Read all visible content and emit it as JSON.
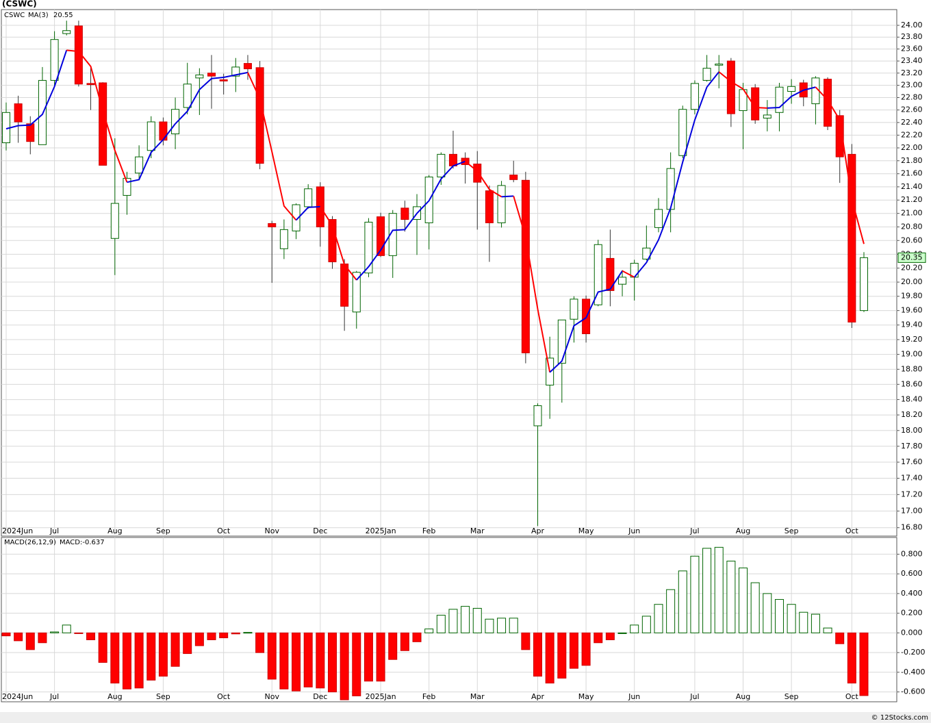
{
  "header": "(CSWC)",
  "footer": "© 12Stocks.com",
  "chart_data": [
    {
      "type": "candlestick",
      "symbol": "CSWC",
      "log_scale": true,
      "grid": true,
      "up_color": "#006400",
      "down_color": "#ff0000",
      "categories": [
        "2024Jun",
        null,
        null,
        null,
        "Jul",
        null,
        null,
        null,
        null,
        "Aug",
        null,
        null,
        null,
        "Sep",
        null,
        null,
        null,
        null,
        "Oct",
        null,
        null,
        null,
        "Nov",
        null,
        null,
        null,
        "Dec",
        null,
        null,
        null,
        null,
        "2025Jan",
        null,
        null,
        null,
        "Feb",
        null,
        null,
        null,
        "Mar",
        null,
        null,
        null,
        null,
        "Apr",
        null,
        null,
        null,
        "May",
        null,
        null,
        null,
        "Jun",
        null,
        null,
        null,
        null,
        "Jul",
        null,
        null,
        null,
        "Aug",
        null,
        null,
        null,
        "Sep",
        null,
        null,
        null,
        null,
        "Oct",
        null
      ],
      "open": [
        22.08,
        22.7,
        22.38,
        22.05,
        23.08,
        23.86,
        23.99,
        23.03,
        23.04,
        20.63,
        21.27,
        21.61,
        21.96,
        22.41,
        22.22,
        22.64,
        23.12,
        23.2,
        23.09,
        23.15,
        23.36,
        23.29,
        20.85,
        20.48,
        20.74,
        21.1,
        21.4,
        20.91,
        20.26,
        19.58,
        20.13,
        20.95,
        20.38,
        21.08,
        20.91,
        20.86,
        21.55,
        21.9,
        21.84,
        21.75,
        21.34,
        20.86,
        21.58,
        21.5,
        18.06,
        18.59,
        18.88,
        19.48,
        19.76,
        19.68,
        20.34,
        19.97,
        20.07,
        20.33,
        20.79,
        21.06,
        21.88,
        22.61,
        23.08,
        23.33,
        23.4,
        22.59,
        22.96,
        22.47,
        22.56,
        22.9,
        23.04,
        22.7,
        23.1,
        22.51,
        21.9,
        19.6
      ],
      "high": [
        22.72,
        22.83,
        22.5,
        23.3,
        23.9,
        24.08,
        24.08,
        23.3,
        23.05,
        22.15,
        21.63,
        22.04,
        22.5,
        22.48,
        22.8,
        23.37,
        23.28,
        23.5,
        23.19,
        23.45,
        23.5,
        23.4,
        20.89,
        20.91,
        21.15,
        21.44,
        21.47,
        20.96,
        20.33,
        20.16,
        20.93,
        21.01,
        21.05,
        21.19,
        21.29,
        21.58,
        21.93,
        22.27,
        21.93,
        21.95,
        21.42,
        21.49,
        21.8,
        21.63,
        18.35,
        19.24,
        19.47,
        19.8,
        19.81,
        20.61,
        20.76,
        20.17,
        20.32,
        20.82,
        21.23,
        21.93,
        22.67,
        23.08,
        23.5,
        23.5,
        23.45,
        23.04,
        23.02,
        22.76,
        23.04,
        23.1,
        23.09,
        23.15,
        23.13,
        22.6,
        22.06,
        20.43
      ],
      "low": [
        21.96,
        22.08,
        21.9,
        22.05,
        23.0,
        23.83,
        22.98,
        22.6,
        21.73,
        20.1,
        20.98,
        21.51,
        21.84,
        22.04,
        21.98,
        22.53,
        22.52,
        22.62,
        22.85,
        22.89,
        23.09,
        21.67,
        19.99,
        20.33,
        20.62,
        21.07,
        20.51,
        20.19,
        19.32,
        19.35,
        20.07,
        20.36,
        20.06,
        20.73,
        20.39,
        20.47,
        21.43,
        21.68,
        21.45,
        20.76,
        20.29,
        20.79,
        21.47,
        18.88,
        16.82,
        18.15,
        18.36,
        19.16,
        19.16,
        19.66,
        19.66,
        19.8,
        19.74,
        20.31,
        20.72,
        20.72,
        21.84,
        22.53,
        23.06,
        22.95,
        22.33,
        21.98,
        22.38,
        22.26,
        22.26,
        22.7,
        22.66,
        22.37,
        22.28,
        21.46,
        19.36,
        19.58
      ],
      "close": [
        22.56,
        22.41,
        22.1,
        23.08,
        23.76,
        23.91,
        23.02,
        23.01,
        21.73,
        21.15,
        21.53,
        21.86,
        22.41,
        22.12,
        22.61,
        23.02,
        23.17,
        23.15,
        23.07,
        23.3,
        23.27,
        21.76,
        20.8,
        20.76,
        21.13,
        21.37,
        20.8,
        20.29,
        19.66,
        20.14,
        20.87,
        20.38,
        21.0,
        20.91,
        21.1,
        21.55,
        21.9,
        21.72,
        21.74,
        21.47,
        20.86,
        21.42,
        21.51,
        19.02,
        18.32,
        18.95,
        19.47,
        19.76,
        19.28,
        20.54,
        19.88,
        20.07,
        20.27,
        20.49,
        21.06,
        21.68,
        22.61,
        23.03,
        23.28,
        23.35,
        22.54,
        22.93,
        22.44,
        22.52,
        22.97,
        22.98,
        22.81,
        23.12,
        22.34,
        21.86,
        19.44,
        20.35
      ],
      "series": [
        {
          "name": "MA(3)",
          "color": "#0000dd",
          "down_color": "#ff0000",
          "values": [
            22.3,
            22.35,
            22.36,
            22.53,
            22.98,
            23.58,
            23.56,
            23.31,
            22.59,
            21.96,
            21.47,
            21.51,
            21.93,
            22.13,
            22.38,
            22.58,
            22.93,
            23.11,
            23.13,
            23.17,
            23.21,
            22.78,
            21.94,
            21.11,
            20.9,
            21.09,
            21.1,
            20.82,
            20.25,
            20.03,
            20.22,
            20.46,
            20.75,
            20.76,
            21.0,
            21.19,
            21.52,
            21.72,
            21.79,
            21.64,
            21.36,
            21.25,
            21.26,
            20.65,
            19.62,
            18.76,
            18.91,
            19.39,
            19.5,
            19.86,
            19.9,
            20.16,
            20.07,
            20.28,
            20.61,
            21.08,
            21.78,
            22.44,
            22.97,
            23.22,
            23.06,
            22.94,
            22.64,
            22.63,
            22.64,
            22.82,
            22.92,
            22.97,
            22.76,
            22.44,
            21.21,
            20.55
          ]
        }
      ],
      "ylim": [
        16.7,
        24.27
      ],
      "yticks": [
        {
          "value": 16.8,
          "label": "16.80"
        },
        {
          "value": 17.0,
          "label": "17.00"
        },
        {
          "value": 17.2,
          "label": "17.20"
        },
        {
          "value": 17.4,
          "label": "17.40"
        },
        {
          "value": 17.6,
          "label": "17.60"
        },
        {
          "value": 17.8,
          "label": "17.80"
        },
        {
          "value": 18.0,
          "label": "18.00"
        },
        {
          "value": 18.2,
          "label": "18.20"
        },
        {
          "value": 18.4,
          "label": "18.40"
        },
        {
          "value": 18.6,
          "label": "18.60"
        },
        {
          "value": 18.8,
          "label": "18.80"
        },
        {
          "value": 19.0,
          "label": "19.00"
        },
        {
          "value": 19.2,
          "label": "19.20"
        },
        {
          "value": 19.4,
          "label": "19.40"
        },
        {
          "value": 19.6,
          "label": "19.60"
        },
        {
          "value": 19.8,
          "label": "19.80"
        },
        {
          "value": 20.0,
          "label": "20.00"
        },
        {
          "value": 20.2,
          "label": "20.20"
        },
        {
          "value": 20.4,
          "label": "20.40"
        },
        {
          "value": 20.6,
          "label": "20.60"
        },
        {
          "value": 20.8,
          "label": "20.80"
        },
        {
          "value": 21.0,
          "label": "21.00"
        },
        {
          "value": 21.2,
          "label": "21.20"
        },
        {
          "value": 21.4,
          "label": "21.40"
        },
        {
          "value": 21.6,
          "label": "21.60"
        },
        {
          "value": 21.8,
          "label": "21.80"
        },
        {
          "value": 22.0,
          "label": "22.00"
        },
        {
          "value": 22.2,
          "label": "22.20"
        },
        {
          "value": 22.4,
          "label": "22.40"
        },
        {
          "value": 22.6,
          "label": "22.60"
        },
        {
          "value": 22.8,
          "label": "22.80"
        },
        {
          "value": 23.0,
          "label": "23.00"
        },
        {
          "value": 23.2,
          "label": "23.20"
        },
        {
          "value": 23.4,
          "label": "23.40"
        },
        {
          "value": 23.6,
          "label": "23.60"
        },
        {
          "value": 23.8,
          "label": "23.80"
        },
        {
          "value": 24.0,
          "label": "24.00"
        }
      ]
    },
    {
      "type": "bar",
      "title": "MACD(26,12,9)",
      "last_label": "MACD:-0.637",
      "grid": true,
      "up_color": "#006400",
      "down_color": "#ff0000",
      "categories": [
        "2024Jun",
        null,
        null,
        null,
        "Jul",
        null,
        null,
        null,
        null,
        "Aug",
        null,
        null,
        null,
        "Sep",
        null,
        null,
        null,
        null,
        "Oct",
        null,
        null,
        null,
        "Nov",
        null,
        null,
        null,
        "Dec",
        null,
        null,
        null,
        null,
        "2025Jan",
        null,
        null,
        null,
        "Feb",
        null,
        null,
        null,
        "Mar",
        null,
        null,
        null,
        null,
        "Apr",
        null,
        null,
        null,
        "May",
        null,
        null,
        null,
        "Jun",
        null,
        null,
        null,
        null,
        "Jul",
        null,
        null,
        null,
        "Aug",
        null,
        null,
        null,
        "Sep",
        null,
        null,
        null,
        null,
        "Oct",
        null
      ],
      "values": [
        -0.03,
        -0.08,
        -0.17,
        -0.1,
        0.01,
        0.08,
        -0.002,
        -0.07,
        -0.3,
        -0.51,
        -0.57,
        -0.56,
        -0.48,
        -0.44,
        -0.34,
        -0.21,
        -0.13,
        -0.07,
        -0.05,
        -0.01,
        0.005,
        -0.2,
        -0.47,
        -0.57,
        -0.59,
        -0.55,
        -0.56,
        -0.6,
        -0.68,
        -0.64,
        -0.49,
        -0.49,
        -0.27,
        -0.18,
        -0.09,
        0.04,
        0.18,
        0.24,
        0.27,
        0.25,
        0.14,
        0.15,
        0.15,
        -0.17,
        -0.44,
        -0.51,
        -0.46,
        -0.36,
        -0.33,
        -0.1,
        -0.07,
        0.0,
        0.08,
        0.17,
        0.29,
        0.44,
        0.63,
        0.78,
        0.86,
        0.87,
        0.73,
        0.66,
        0.51,
        0.4,
        0.34,
        0.29,
        0.21,
        0.19,
        0.05,
        -0.11,
        -0.51,
        -0.637
      ],
      "ylim": [
        -0.7,
        0.97
      ],
      "yticks": [
        {
          "value": -0.6,
          "label": "-0.600"
        },
        {
          "value": -0.4,
          "label": "-0.400"
        },
        {
          "value": -0.2,
          "label": "-0.200"
        },
        {
          "value": 0,
          "label": "0.000"
        },
        {
          "value": 0.2,
          "label": "0.200"
        },
        {
          "value": 0.4,
          "label": "0.400"
        },
        {
          "value": 0.6,
          "label": "0.600"
        },
        {
          "value": 0.8,
          "label": "0.800"
        }
      ]
    }
  ]
}
